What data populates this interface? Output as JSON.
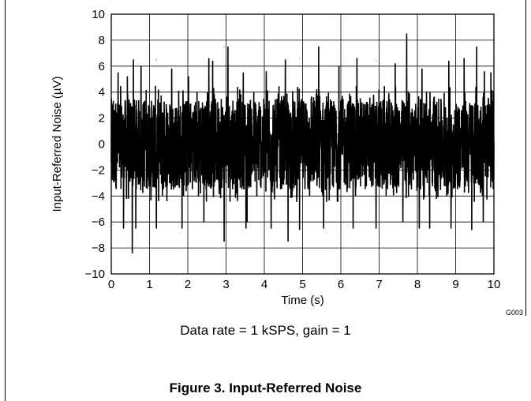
{
  "chart_data": {
    "type": "line",
    "title": "",
    "xlabel": "Time (s)",
    "ylabel": "Input-Referred Noise (µV)",
    "xlim": [
      0,
      10
    ],
    "ylim": [
      -10,
      10
    ],
    "x_ticks": [
      "0",
      "1",
      "2",
      "3",
      "4",
      "5",
      "6",
      "7",
      "8",
      "9",
      "10"
    ],
    "y_ticks": [
      "10",
      "8",
      "6",
      "4",
      "2",
      "0",
      "−2",
      "−4",
      "−6",
      "−8",
      "−10"
    ],
    "grid": true,
    "series": [
      {
        "color": "#000000",
        "x_start": 0,
        "x_end": 10,
        "typical_range": [
          -4.5,
          4.5
        ],
        "dense_range": [
          -3.5,
          3.5
        ],
        "peaks": [
          {
            "x": 0.18,
            "y": 5.5
          },
          {
            "x": 0.42,
            "y": 5.2
          },
          {
            "x": 0.58,
            "y": 6.5
          },
          {
            "x": 0.78,
            "y": 6.0
          },
          {
            "x": 1.18,
            "y": 6.5
          },
          {
            "x": 1.58,
            "y": 5.8
          },
          {
            "x": 2.02,
            "y": 5.2
          },
          {
            "x": 2.55,
            "y": 6.6
          },
          {
            "x": 2.65,
            "y": 6.4
          },
          {
            "x": 2.95,
            "y": 7.5
          },
          {
            "x": 3.05,
            "y": 7.5
          },
          {
            "x": 3.45,
            "y": 5.5
          },
          {
            "x": 4.05,
            "y": 5.6
          },
          {
            "x": 4.55,
            "y": 6.5
          },
          {
            "x": 4.92,
            "y": 6.6
          },
          {
            "x": 5.42,
            "y": 7.5
          },
          {
            "x": 5.95,
            "y": 6.0
          },
          {
            "x": 6.42,
            "y": 6.6
          },
          {
            "x": 6.92,
            "y": 6.4
          },
          {
            "x": 7.42,
            "y": 6.2
          },
          {
            "x": 7.72,
            "y": 8.5
          },
          {
            "x": 8.12,
            "y": 5.8
          },
          {
            "x": 8.82,
            "y": 6.4
          },
          {
            "x": 9.22,
            "y": 6.6
          },
          {
            "x": 9.55,
            "y": 7.5
          },
          {
            "x": 9.75,
            "y": 5.6
          },
          {
            "x": 9.92,
            "y": 5.5
          }
        ],
        "troughs": [
          {
            "x": 0.32,
            "y": -6.5
          },
          {
            "x": 0.55,
            "y": -8.4
          },
          {
            "x": 0.64,
            "y": -6.5
          },
          {
            "x": 1.18,
            "y": -6.5
          },
          {
            "x": 1.85,
            "y": -6.5
          },
          {
            "x": 2.42,
            "y": -6.0
          },
          {
            "x": 2.95,
            "y": -7.5
          },
          {
            "x": 3.52,
            "y": -6.5
          },
          {
            "x": 3.55,
            "y": -6.0
          },
          {
            "x": 4.18,
            "y": -6.5
          },
          {
            "x": 4.62,
            "y": -7.5
          },
          {
            "x": 4.92,
            "y": -6.6
          },
          {
            "x": 5.55,
            "y": -6.5
          },
          {
            "x": 6.32,
            "y": -6.5
          },
          {
            "x": 6.92,
            "y": -6.5
          },
          {
            "x": 7.62,
            "y": -6.0
          },
          {
            "x": 8.05,
            "y": -6.5
          },
          {
            "x": 8.32,
            "y": -6.5
          },
          {
            "x": 8.88,
            "y": -6.5
          },
          {
            "x": 9.42,
            "y": -6.6
          },
          {
            "x": 9.72,
            "y": -6.0
          }
        ]
      }
    ]
  },
  "graph_id": "G003",
  "condition": "Data rate = 1 kSPS, gain = 1",
  "figure_caption": "Figure 3. Input-Referred Noise"
}
